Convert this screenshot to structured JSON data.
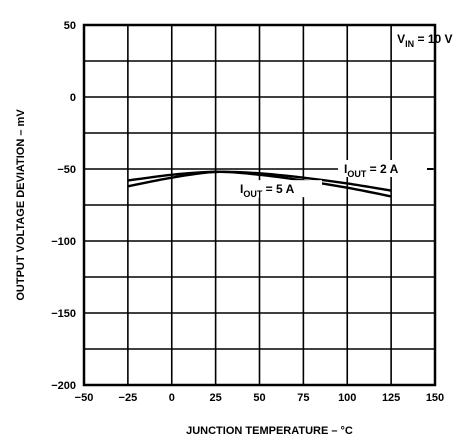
{
  "chart_data": {
    "type": "line",
    "title": "",
    "xlabel": "JUNCTION TEMPERATURE – °C",
    "ylabel": "OUTPUT VOLTAGE DEVIATION – mV",
    "xlim": [
      -50,
      150
    ],
    "ylim": [
      -200,
      50
    ],
    "x_ticks": [
      -50,
      -25,
      0,
      25,
      50,
      75,
      100,
      125,
      150
    ],
    "x_tick_labels": [
      "−50",
      "−25",
      "0",
      "25",
      "50",
      "75",
      "100",
      "125",
      "150"
    ],
    "y_ticks": [
      50,
      0,
      -50,
      -100,
      -150,
      -200
    ],
    "y_tick_labels": [
      "50",
      "0",
      "−50",
      "−100",
      "−150",
      "−200"
    ],
    "grid": true,
    "condition": {
      "main": "V",
      "sub": "IN",
      "rest": " = 10 V"
    },
    "series": [
      {
        "name": "I_OUT = 2 A",
        "label": {
          "main": "I",
          "sub": "OUT",
          "rest": " = 2 A"
        },
        "x": [
          -25,
          0,
          25,
          50,
          75,
          100,
          125
        ],
        "values": [
          -58,
          -54,
          -52,
          -53,
          -56,
          -60,
          -65
        ]
      },
      {
        "name": "I_OUT = 5 A",
        "label": {
          "main": "I",
          "sub": "OUT",
          "rest": " = 5 A"
        },
        "x": [
          -25,
          0,
          25,
          50,
          75,
          100,
          125
        ],
        "values": [
          -62,
          -56,
          -52,
          -54,
          -58,
          -63,
          -69
        ]
      }
    ]
  }
}
